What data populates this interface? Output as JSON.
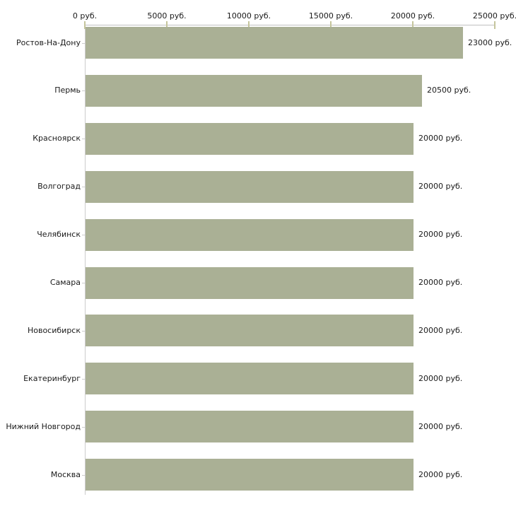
{
  "chart_data": {
    "type": "bar",
    "orientation": "horizontal",
    "categories": [
      "Ростов-На-Дону",
      "Пермь",
      "Красноярск",
      "Волгоград",
      "Челябинск",
      "Самара",
      "Новосибирск",
      "Екатеринбург",
      "Нижний Новгород",
      "Москва"
    ],
    "values": [
      23000,
      20500,
      20000,
      20000,
      20000,
      20000,
      20000,
      20000,
      20000,
      20000
    ],
    "value_labels": [
      "23000 руб.",
      "20500 руб.",
      "20000 руб.",
      "20000 руб.",
      "20000 руб.",
      "20000 руб.",
      "20000 руб.",
      "20000 руб.",
      "20000 руб.",
      "20000 руб."
    ],
    "x_axis": {
      "position": "top",
      "min": 0,
      "max": 25000,
      "ticks": [
        0,
        5000,
        10000,
        15000,
        20000,
        25000
      ],
      "tick_labels": [
        "0 руб.",
        "5000 руб.",
        "10000 руб.",
        "15000 руб.",
        "20000 руб.",
        "25000 руб."
      ]
    },
    "grid": false,
    "legend": false,
    "colors": {
      "bar": "#aab095",
      "x_axis_line": "#c0c0c0",
      "y_axis_line": "#cccccc",
      "tick_mark": "#c5c59c",
      "category_tick": "#cccccc",
      "text": "#1a1a1a",
      "background": "#ffffff"
    }
  }
}
